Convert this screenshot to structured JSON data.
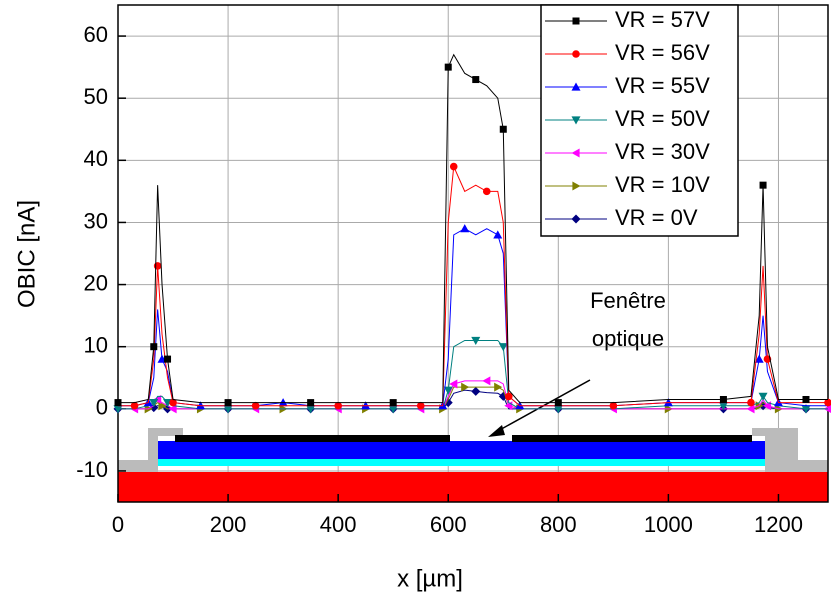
{
  "chart_data": {
    "type": "line",
    "x_label": "x [µm]",
    "y_label": "OBIC [nA]",
    "annotation": [
      "Fenêtre",
      "optique"
    ],
    "x": [
      0,
      30,
      55,
      65,
      72,
      80,
      90,
      100,
      150,
      200,
      250,
      300,
      350,
      400,
      450,
      500,
      550,
      590,
      600,
      610,
      630,
      650,
      670,
      690,
      700,
      710,
      730,
      800,
      900,
      1000,
      1100,
      1150,
      1165,
      1172,
      1180,
      1200,
      1250,
      1290
    ],
    "series": [
      {
        "name": "VR = 57V",
        "color": "#000000",
        "marker": "square",
        "values": [
          1,
          1,
          1.5,
          10,
          36,
          20,
          8,
          1.5,
          1,
          1,
          1,
          1,
          1,
          1,
          1,
          1,
          1,
          1,
          55,
          57,
          54,
          53,
          52,
          50,
          45,
          3,
          1,
          1,
          1,
          1.5,
          1.5,
          2,
          15,
          36,
          10,
          1.5,
          1.5,
          1.5
        ]
      },
      {
        "name": "VR = 56V",
        "color": "#ff0000",
        "marker": "circle",
        "values": [
          0.5,
          0.5,
          1,
          8,
          23,
          12,
          5,
          1,
          0.5,
          0.5,
          0.5,
          0.5,
          0.5,
          0.5,
          0.5,
          0.5,
          0.5,
          0.5,
          30,
          39,
          35,
          36,
          35,
          35,
          30,
          2,
          0.5,
          0.5,
          0.5,
          1,
          1,
          1,
          12,
          23,
          8,
          1,
          1,
          1
        ]
      },
      {
        "name": "VR = 55V",
        "color": "#0000ff",
        "marker": "triangle-up",
        "values": [
          0.5,
          0.5,
          1,
          5,
          16,
          8,
          6,
          1,
          0.5,
          0.5,
          0.5,
          1,
          0.5,
          0.5,
          0.5,
          0.5,
          0.5,
          0.5,
          8,
          28,
          29,
          28,
          29,
          28,
          25,
          2,
          0.5,
          0.5,
          0.5,
          1,
          1,
          1,
          8,
          15,
          6,
          1,
          0.5,
          0.5
        ]
      },
      {
        "name": "VR = 50V",
        "color": "#008080",
        "marker": "triangle-down",
        "values": [
          0,
          0,
          0.5,
          1,
          2,
          2,
          1,
          0.5,
          0,
          0,
          0,
          0,
          0,
          0,
          0,
          0,
          0,
          0,
          3,
          10,
          11,
          11,
          11,
          11,
          10,
          1,
          0,
          0,
          0,
          0.5,
          0.5,
          0.5,
          1,
          2,
          1,
          0.5,
          0,
          0
        ]
      },
      {
        "name": "VR = 30V",
        "color": "#ff00ff",
        "marker": "triangle-left",
        "values": [
          0,
          0,
          0,
          0.5,
          1.5,
          1,
          0.5,
          0,
          0,
          0,
          0,
          0,
          0,
          0,
          0,
          0,
          0,
          0,
          2,
          4,
          4.5,
          4.5,
          4.5,
          4.5,
          4,
          0.5,
          0,
          0,
          0,
          0,
          0,
          0,
          0.5,
          1.5,
          0.5,
          0,
          0,
          0
        ]
      },
      {
        "name": "VR = 10V",
        "color": "#808000",
        "marker": "triangle-right",
        "values": [
          0,
          0,
          0,
          0.5,
          1,
          0.5,
          0,
          0,
          0,
          0,
          0,
          0,
          0,
          0,
          0,
          0,
          0,
          0,
          1.5,
          3.5,
          3.5,
          3.5,
          3.5,
          3.5,
          3,
          0.5,
          0,
          0,
          0,
          0,
          0,
          0,
          0.5,
          1,
          0.5,
          0,
          0,
          0
        ]
      },
      {
        "name": "VR = 0V",
        "color": "#000080",
        "marker": "diamond",
        "values": [
          0,
          0,
          0,
          0.2,
          0.5,
          0.3,
          0,
          0,
          0,
          0,
          0,
          0,
          0,
          0,
          0,
          0,
          0,
          0,
          1,
          2.5,
          3,
          2.8,
          2.6,
          2.5,
          2,
          0,
          0,
          0,
          0,
          0,
          0,
          0,
          0.2,
          0.5,
          0.2,
          0,
          0,
          0
        ]
      }
    ],
    "xlim": [
      0,
      1290
    ],
    "ylim": [
      -15,
      65
    ],
    "xticks": [
      0,
      200,
      400,
      600,
      800,
      1000,
      1200
    ],
    "yticks": [
      -10,
      0,
      10,
      20,
      30,
      40,
      50,
      60
    ],
    "grid": true
  }
}
